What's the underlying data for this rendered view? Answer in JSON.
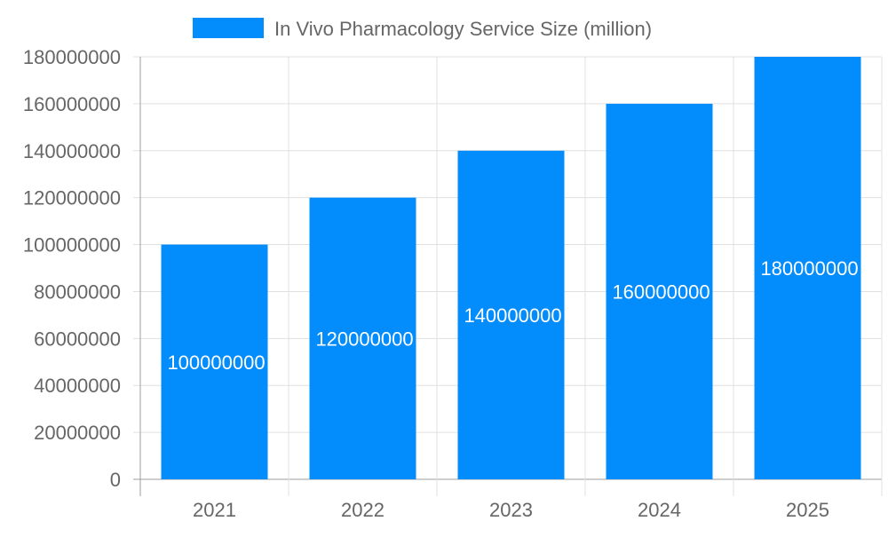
{
  "chart_data": {
    "type": "bar",
    "categories": [
      "2021",
      "2022",
      "2023",
      "2024",
      "2025"
    ],
    "series": [
      {
        "name": "In Vivo Pharmacology Service Size (million)",
        "values": [
          100000000,
          120000000,
          140000000,
          160000000,
          180000000
        ]
      }
    ],
    "data_labels": [
      "100000000",
      "120000000",
      "140000000",
      "160000000",
      "180000000"
    ],
    "yticks": [
      "0",
      "20000000",
      "40000000",
      "60000000",
      "80000000",
      "100000000",
      "120000000",
      "140000000",
      "160000000",
      "180000000"
    ],
    "ylim": [
      0,
      180000000
    ],
    "title": "",
    "xlabel": "",
    "ylabel": "",
    "grid": true,
    "legend_position": "top",
    "colors": {
      "bar": "#038cfc",
      "grid": "#e0e0e0",
      "axis": "#9e9e9e",
      "text": "#666666"
    }
  }
}
